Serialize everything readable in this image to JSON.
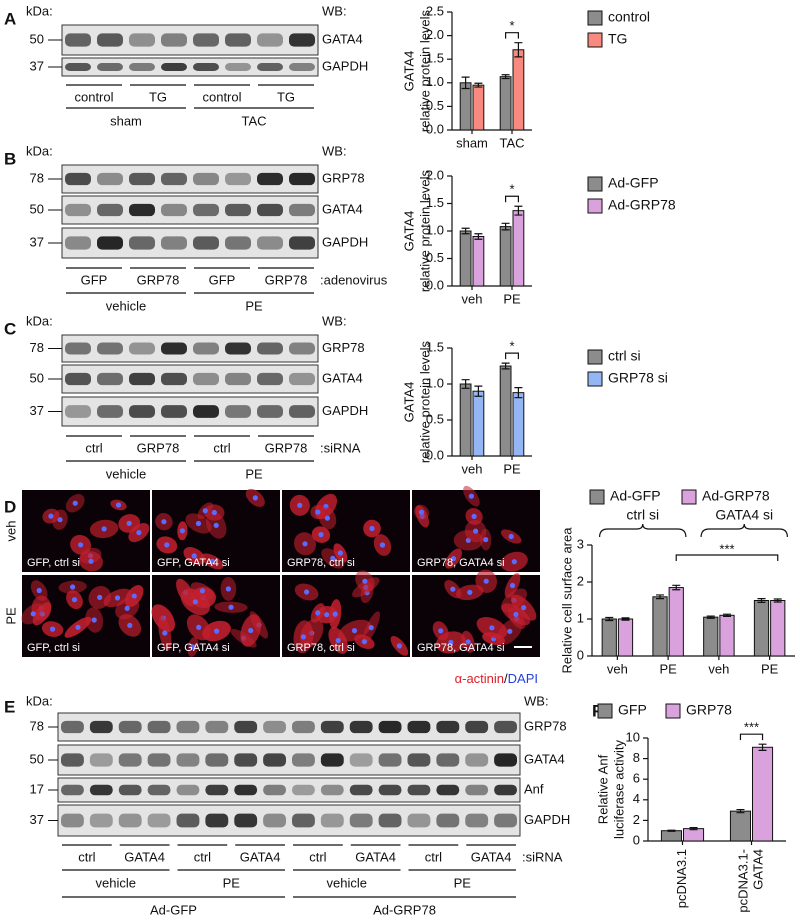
{
  "panel_letters": [
    "A",
    "B",
    "C",
    "D",
    "E",
    "F"
  ],
  "blots": [
    {
      "kda": "kDa:",
      "wb": "WB:",
      "rows": [
        {
          "marker": "50",
          "label": "GATA4"
        },
        {
          "marker": "37",
          "label": "GAPDH"
        }
      ],
      "lanes": [
        "control",
        "TG",
        "control",
        "TG"
      ],
      "groups": [
        "sham",
        "TAC"
      ]
    },
    {
      "kda": "kDa:",
      "wb": "WB:",
      "rows": [
        {
          "marker": "78",
          "label": "GRP78"
        },
        {
          "marker": "50",
          "label": "GATA4"
        },
        {
          "marker": "37",
          "label": "GAPDH"
        }
      ],
      "lanes": [
        "GFP",
        "GRP78",
        "GFP",
        "GRP78"
      ],
      "lane_suffix": ":adenovirus",
      "groups": [
        "vehicle",
        "PE"
      ]
    },
    {
      "kda": "kDa:",
      "wb": "WB:",
      "rows": [
        {
          "marker": "78",
          "label": "GRP78"
        },
        {
          "marker": "50",
          "label": "GATA4"
        },
        {
          "marker": "37",
          "label": "GAPDH"
        }
      ],
      "lanes": [
        "ctrl",
        "GRP78",
        "ctrl",
        "GRP78"
      ],
      "lane_suffix": ":siRNA",
      "groups": [
        "vehicle",
        "PE"
      ]
    },
    {
      "kda": "kDa:",
      "wb": "WB:",
      "rows": [
        {
          "marker": "78",
          "label": "GRP78"
        },
        {
          "marker": "50",
          "label": "GATA4"
        },
        {
          "marker": "17",
          "label": "Anf"
        },
        {
          "marker": "37",
          "label": "GAPDH"
        }
      ],
      "lanes": [
        "ctrl",
        "GATA4",
        "ctrl",
        "GATA4",
        "ctrl",
        "GATA4",
        "ctrl",
        "GATA4"
      ],
      "lane_suffix": ":siRNA",
      "groups": [
        "vehicle",
        "PE",
        "vehicle",
        "PE"
      ],
      "supergroups": [
        "Ad-GFP",
        "Ad-GRP78"
      ]
    }
  ],
  "micrographs": {
    "rows": [
      "veh",
      "PE"
    ],
    "captions": [
      [
        "GFP, ctrl si",
        "GFP, GATA4 si",
        "GRP78, ctrl si",
        "GRP78, GATA4 si"
      ],
      [
        "GFP, ctrl si",
        "GFP, GATA4 si",
        "GRP78, ctrl si",
        "GRP78, GATA4 si"
      ]
    ],
    "stain": [
      "α-actinin",
      "/",
      "DAPI"
    ]
  },
  "chart_data": [
    {
      "type": "bar",
      "ylabel": [
        "GATA4",
        "relative protein levels"
      ],
      "categories": [
        "sham",
        "TAC"
      ],
      "series": [
        {
          "name": "control",
          "color": "#8c8c8c",
          "label_color": "#111111",
          "values": [
            1.0,
            1.13
          ],
          "errors": [
            0.12,
            0.04
          ]
        },
        {
          "name": "TG",
          "color": "#f7897e",
          "label_color": "#e03a2c",
          "values": [
            0.95,
            1.7
          ],
          "errors": [
            0.04,
            0.15
          ]
        }
      ],
      "ylim": [
        0,
        2.5
      ],
      "yticks": [
        {
          "value": 0,
          "label": "0.0"
        },
        0.5,
        {
          "value": 1,
          "label": "1.0"
        },
        1.5,
        {
          "value": 2,
          "label": "2.0"
        },
        2.5
      ],
      "annotation": "*"
    },
    {
      "type": "bar",
      "ylabel": [
        "GATA4",
        "relative protein levels"
      ],
      "categories": [
        "veh",
        "PE"
      ],
      "series": [
        {
          "name": "Ad-GFP",
          "color": "#8c8c8c",
          "label_color": "#111111",
          "values": [
            1.0,
            1.08
          ],
          "errors": [
            0.05,
            0.06
          ]
        },
        {
          "name": "Ad-GRP78",
          "color": "#d9a2dd",
          "label_color": "#9a3fa3",
          "values": [
            0.9,
            1.37
          ],
          "errors": [
            0.05,
            0.08
          ]
        }
      ],
      "ylim": [
        0,
        2
      ],
      "yticks": [
        {
          "value": 0,
          "label": "0.0"
        },
        0.5,
        {
          "value": 1,
          "label": "1.0"
        },
        1.5,
        {
          "value": 2,
          "label": "2.0"
        }
      ],
      "annotation": "*"
    },
    {
      "type": "bar",
      "ylabel": [
        "GATA4",
        "relative protein levels"
      ],
      "categories": [
        "veh",
        "PE"
      ],
      "series": [
        {
          "name": "ctrl si",
          "color": "#8c8c8c",
          "label_color": "#111111",
          "values": [
            1.0,
            1.25
          ],
          "errors": [
            0.06,
            0.04
          ]
        },
        {
          "name": "GRP78 si",
          "color": "#94b6f5",
          "label_color": "#2f5fe0",
          "values": [
            0.9,
            0.88
          ],
          "errors": [
            0.07,
            0.07
          ]
        }
      ],
      "ylim": [
        0,
        1.5
      ],
      "yticks": [
        {
          "value": 0,
          "label": "0.0"
        },
        0.5,
        {
          "value": 1,
          "label": "1.0"
        },
        1.5
      ],
      "annotation": "*"
    },
    {
      "type": "bar",
      "ylabel": [
        "Relative cell surface area"
      ],
      "categories": [
        "veh",
        "PE",
        "veh",
        "PE"
      ],
      "series": [
        {
          "name": "Ad-GFP",
          "color": "#8c8c8c",
          "label_color": "#111111",
          "values": [
            1.0,
            1.6,
            1.05,
            1.5
          ],
          "errors": [
            0.04,
            0.05,
            0.03,
            0.05
          ]
        },
        {
          "name": "Ad-GRP78",
          "color": "#d9a2dd",
          "label_color": "#9a3fa3",
          "values": [
            1.0,
            1.85,
            1.1,
            1.5
          ],
          "errors": [
            0.03,
            0.06,
            0.03,
            0.04
          ]
        }
      ],
      "ylim": [
        0,
        3
      ],
      "yticks": [
        0,
        1,
        2,
        3
      ],
      "groups": [
        "ctrl si",
        "GATA4 si"
      ],
      "annotation": "***"
    },
    {
      "type": "bar",
      "ylabel": [
        "Relative Anf",
        "luciferase activity"
      ],
      "categories": [
        "pcDNA3.1",
        "pcDNA3.1-GATA4"
      ],
      "series": [
        {
          "name": "GFP",
          "color": "#8c8c8c",
          "label_color": "#111111",
          "values": [
            1.0,
            2.9
          ],
          "errors": [
            0.05,
            0.15
          ]
        },
        {
          "name": "GRP78",
          "color": "#d9a2dd",
          "label_color": "#9a3fa3",
          "values": [
            1.2,
            9.1
          ],
          "errors": [
            0.1,
            0.3
          ]
        }
      ],
      "ylim": [
        0,
        10
      ],
      "yticks": [
        0,
        2,
        4,
        6,
        8,
        10
      ],
      "annotation": "***"
    }
  ]
}
